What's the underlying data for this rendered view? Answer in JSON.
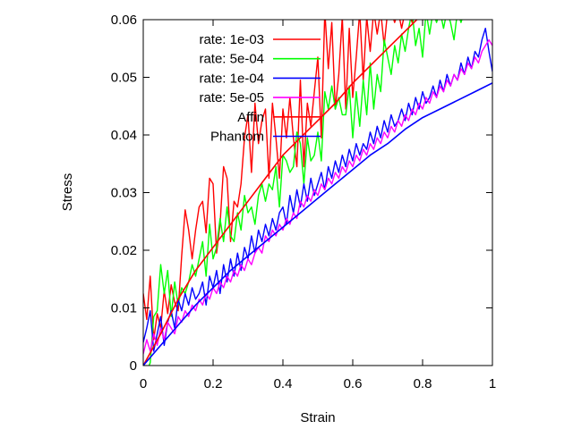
{
  "chart_data": {
    "type": "line",
    "xlabel": "Strain",
    "ylabel": "Stress",
    "xlim": [
      0,
      1
    ],
    "ylim": [
      0,
      0.06
    ],
    "xticks": [
      "0",
      "0.2",
      "0.4",
      "0.6",
      "0.8",
      "1"
    ],
    "xtick_values": [
      0,
      0.2,
      0.4,
      0.6,
      0.8,
      1
    ],
    "yticks": [
      "0",
      "0.01",
      "0.02",
      "0.03",
      "0.04",
      "0.05",
      "0.06"
    ],
    "ytick_values": [
      0,
      0.01,
      0.02,
      0.03,
      0.04,
      0.05,
      0.06
    ],
    "grid": false,
    "legend_position": "top-left",
    "series": [
      {
        "name": "rate: 1e-03",
        "color": "#ff0000",
        "style": "noisy",
        "x": [
          0.0,
          0.01,
          0.02,
          0.03,
          0.04,
          0.05,
          0.06,
          0.07,
          0.08,
          0.09,
          0.1,
          0.11,
          0.12,
          0.13,
          0.14,
          0.15,
          0.16,
          0.17,
          0.18,
          0.19,
          0.2,
          0.21,
          0.22,
          0.23,
          0.24,
          0.25,
          0.26,
          0.27,
          0.28,
          0.29,
          0.3,
          0.31,
          0.32,
          0.33,
          0.34,
          0.35,
          0.36,
          0.37,
          0.38,
          0.39,
          0.4,
          0.41,
          0.42,
          0.43,
          0.44,
          0.45,
          0.46,
          0.47,
          0.48,
          0.49,
          0.5,
          0.51,
          0.52,
          0.53,
          0.54,
          0.55,
          0.56,
          0.57,
          0.58,
          0.59,
          0.6,
          0.61,
          0.62,
          0.63,
          0.64,
          0.65,
          0.66,
          0.67,
          0.68,
          0.69,
          0.7,
          0.71,
          0.72,
          0.73,
          0.74,
          0.75,
          0.76,
          0.77,
          0.78,
          0.79,
          0.8,
          0.81,
          0.82,
          0.83,
          0.84,
          0.85,
          0.86,
          0.87,
          0.88,
          0.89,
          0.9,
          0.91,
          0.92,
          0.93
        ],
        "y": [
          0.0125,
          0.008,
          0.0155,
          0.0045,
          0.009,
          0.0065,
          0.013,
          0.009,
          0.014,
          0.011,
          0.0095,
          0.019,
          0.027,
          0.0235,
          0.0185,
          0.0235,
          0.0275,
          0.0285,
          0.023,
          0.0325,
          0.0315,
          0.0195,
          0.0245,
          0.0345,
          0.0325,
          0.0215,
          0.0285,
          0.0275,
          0.0315,
          0.0395,
          0.0435,
          0.0335,
          0.0455,
          0.0385,
          0.0425,
          0.0445,
          0.0325,
          0.0455,
          0.0395,
          0.0325,
          0.0445,
          0.0395,
          0.0465,
          0.0395,
          0.0345,
          0.0495,
          0.0345,
          0.0455,
          0.0415,
          0.0475,
          0.0535,
          0.0395,
          0.0615,
          0.0515,
          0.0595,
          0.0445,
          0.0505,
          0.0605,
          0.0445,
          0.0585,
          0.0465,
          0.0535,
          0.0615,
          0.0495,
          0.0605,
          0.0545,
          0.0615,
          0.0575,
          0.0615,
          0.0555,
          0.0615,
          0.0615,
          0.0595,
          0.0615,
          0.0585,
          0.0615,
          0.0615,
          0.0595,
          0.0615,
          0.0615,
          0.0615,
          0.0615,
          0.0615,
          0.0615,
          0.0615,
          0.0615,
          0.0615,
          0.0615,
          0.0615,
          0.0615,
          0.0615,
          0.0615,
          0.0615,
          0.0615
        ]
      },
      {
        "name": "rate: 5e-04",
        "color": "#00ff00",
        "style": "noisy",
        "x": [
          0.0,
          0.01,
          0.02,
          0.03,
          0.04,
          0.05,
          0.06,
          0.07,
          0.08,
          0.09,
          0.1,
          0.11,
          0.12,
          0.13,
          0.14,
          0.15,
          0.16,
          0.17,
          0.18,
          0.19,
          0.2,
          0.21,
          0.22,
          0.23,
          0.24,
          0.25,
          0.26,
          0.27,
          0.28,
          0.29,
          0.3,
          0.31,
          0.32,
          0.33,
          0.34,
          0.35,
          0.36,
          0.37,
          0.38,
          0.39,
          0.4,
          0.41,
          0.42,
          0.43,
          0.44,
          0.45,
          0.46,
          0.47,
          0.48,
          0.49,
          0.5,
          0.51,
          0.52,
          0.53,
          0.54,
          0.55,
          0.56,
          0.57,
          0.58,
          0.59,
          0.6,
          0.61,
          0.62,
          0.63,
          0.64,
          0.65,
          0.66,
          0.67,
          0.68,
          0.69,
          0.7,
          0.71,
          0.72,
          0.73,
          0.74,
          0.75,
          0.76,
          0.77,
          0.78,
          0.79,
          0.8,
          0.81,
          0.82,
          0.83,
          0.84,
          0.85,
          0.86,
          0.87,
          0.88,
          0.89,
          0.9,
          0.91,
          0.92,
          0.93
        ],
        "y": [
          0.0,
          -0.001,
          0.0005,
          0.0085,
          0.0095,
          0.0175,
          0.0125,
          0.0165,
          0.0085,
          0.0145,
          0.0105,
          0.0135,
          0.0125,
          0.0145,
          0.0175,
          0.0155,
          0.0185,
          0.0215,
          0.0155,
          0.0245,
          0.0185,
          0.0205,
          0.0255,
          0.0215,
          0.0275,
          0.0225,
          0.0215,
          0.0265,
          0.0235,
          0.0295,
          0.0265,
          0.0275,
          0.0245,
          0.0295,
          0.0315,
          0.0285,
          0.0315,
          0.0305,
          0.0345,
          0.0275,
          0.0365,
          0.0355,
          0.0335,
          0.0345,
          0.0405,
          0.0385,
          0.0315,
          0.0395,
          0.0355,
          0.0365,
          0.0405,
          0.0355,
          0.0475,
          0.0445,
          0.0485,
          0.0445,
          0.0465,
          0.0435,
          0.0435,
          0.0485,
          0.0395,
          0.0475,
          0.0415,
          0.0495,
          0.0435,
          0.0525,
          0.0445,
          0.0505,
          0.0475,
          0.0565,
          0.0535,
          0.0505,
          0.0555,
          0.0525,
          0.0575,
          0.0545,
          0.0585,
          0.0615,
          0.0555,
          0.0585,
          0.0535,
          0.0615,
          0.0575,
          0.0615,
          0.0595,
          0.0615,
          0.0585,
          0.0615,
          0.0595,
          0.0565,
          0.0615,
          0.0595,
          0.0615,
          0.0615
        ]
      },
      {
        "name": "rate: 1e-04",
        "color": "#0000ff",
        "style": "noisy",
        "x": [
          0.0,
          0.01,
          0.02,
          0.03,
          0.04,
          0.05,
          0.06,
          0.07,
          0.08,
          0.09,
          0.1,
          0.11,
          0.12,
          0.13,
          0.14,
          0.15,
          0.16,
          0.17,
          0.18,
          0.19,
          0.2,
          0.21,
          0.22,
          0.23,
          0.24,
          0.25,
          0.26,
          0.27,
          0.28,
          0.29,
          0.3,
          0.31,
          0.32,
          0.33,
          0.34,
          0.35,
          0.36,
          0.37,
          0.38,
          0.39,
          0.4,
          0.41,
          0.42,
          0.43,
          0.44,
          0.45,
          0.46,
          0.47,
          0.48,
          0.49,
          0.5,
          0.51,
          0.52,
          0.53,
          0.54,
          0.55,
          0.56,
          0.57,
          0.58,
          0.59,
          0.6,
          0.61,
          0.62,
          0.63,
          0.64,
          0.65,
          0.66,
          0.67,
          0.68,
          0.69,
          0.7,
          0.71,
          0.72,
          0.73,
          0.74,
          0.75,
          0.76,
          0.77,
          0.78,
          0.79,
          0.8,
          0.81,
          0.82,
          0.83,
          0.84,
          0.85,
          0.86,
          0.87,
          0.88,
          0.89,
          0.9,
          0.91,
          0.92,
          0.93,
          0.94,
          0.95,
          0.96,
          0.97,
          0.98,
          0.99,
          1.0
        ],
        "y": [
          0.004,
          0.0065,
          0.0095,
          0.0025,
          0.0055,
          0.0085,
          0.0035,
          0.0075,
          0.0095,
          0.0065,
          0.0115,
          0.0095,
          0.0125,
          0.0105,
          0.0135,
          0.0115,
          0.0125,
          0.0145,
          0.0105,
          0.0155,
          0.0135,
          0.0165,
          0.0125,
          0.0175,
          0.0145,
          0.0185,
          0.0155,
          0.0195,
          0.0165,
          0.0205,
          0.0185,
          0.0225,
          0.0195,
          0.0235,
          0.0215,
          0.0245,
          0.0225,
          0.0255,
          0.0235,
          0.0265,
          0.0275,
          0.0245,
          0.0295,
          0.0265,
          0.0305,
          0.0275,
          0.0315,
          0.0285,
          0.0325,
          0.0295,
          0.0315,
          0.0335,
          0.0305,
          0.0345,
          0.0325,
          0.0355,
          0.0335,
          0.0365,
          0.0345,
          0.0375,
          0.0355,
          0.0385,
          0.0365,
          0.0385,
          0.0375,
          0.0405,
          0.0385,
          0.0415,
          0.0395,
          0.0425,
          0.0405,
          0.0435,
          0.0415,
          0.0425,
          0.0445,
          0.0425,
          0.0455,
          0.0435,
          0.0465,
          0.0445,
          0.0475,
          0.0455,
          0.0465,
          0.0485,
          0.0465,
          0.0495,
          0.0475,
          0.0505,
          0.0485,
          0.0505,
          0.0495,
          0.0525,
          0.0505,
          0.0535,
          0.0515,
          0.0545,
          0.0535,
          0.0565,
          0.0585,
          0.0545,
          0.051
        ]
      },
      {
        "name": "rate: 5e-05",
        "color": "#ff00ff",
        "style": "noisy",
        "x": [
          0.0,
          0.01,
          0.02,
          0.03,
          0.04,
          0.05,
          0.06,
          0.07,
          0.08,
          0.09,
          0.1,
          0.11,
          0.12,
          0.13,
          0.14,
          0.15,
          0.16,
          0.17,
          0.18,
          0.19,
          0.2,
          0.21,
          0.22,
          0.23,
          0.24,
          0.25,
          0.26,
          0.27,
          0.28,
          0.29,
          0.3,
          0.31,
          0.32,
          0.33,
          0.34,
          0.35,
          0.36,
          0.37,
          0.38,
          0.39,
          0.4,
          0.41,
          0.42,
          0.43,
          0.44,
          0.45,
          0.46,
          0.47,
          0.48,
          0.49,
          0.5,
          0.51,
          0.52,
          0.53,
          0.54,
          0.55,
          0.56,
          0.57,
          0.58,
          0.59,
          0.6,
          0.61,
          0.62,
          0.63,
          0.64,
          0.65,
          0.66,
          0.67,
          0.68,
          0.69,
          0.7,
          0.71,
          0.72,
          0.73,
          0.74,
          0.75,
          0.76,
          0.77,
          0.78,
          0.79,
          0.8,
          0.81,
          0.82,
          0.83,
          0.84,
          0.85,
          0.86,
          0.87,
          0.88,
          0.89,
          0.9,
          0.91,
          0.92,
          0.93,
          0.94,
          0.95,
          0.96,
          0.97,
          0.98,
          0.99,
          1.0
        ],
        "y": [
          0.002,
          0.0045,
          0.0025,
          0.0055,
          0.0035,
          0.0065,
          0.0045,
          0.0075,
          0.0065,
          0.0055,
          0.0085,
          0.0075,
          0.0095,
          0.0085,
          0.0105,
          0.0095,
          0.0115,
          0.0105,
          0.0125,
          0.0115,
          0.0135,
          0.0125,
          0.0145,
          0.0135,
          0.0155,
          0.0145,
          0.0165,
          0.0155,
          0.0175,
          0.0165,
          0.0185,
          0.0175,
          0.0195,
          0.0205,
          0.0195,
          0.0225,
          0.0215,
          0.0235,
          0.0225,
          0.0245,
          0.0235,
          0.0255,
          0.0245,
          0.0265,
          0.0255,
          0.0285,
          0.0275,
          0.0295,
          0.0285,
          0.0305,
          0.0295,
          0.0315,
          0.0305,
          0.0325,
          0.0315,
          0.0335,
          0.0325,
          0.0345,
          0.0335,
          0.0355,
          0.0345,
          0.0365,
          0.0355,
          0.0375,
          0.0365,
          0.0385,
          0.0375,
          0.0395,
          0.0385,
          0.0405,
          0.0395,
          0.0415,
          0.0405,
          0.0425,
          0.0415,
          0.0435,
          0.0425,
          0.0445,
          0.0435,
          0.0455,
          0.0445,
          0.0465,
          0.0455,
          0.0475,
          0.0465,
          0.0485,
          0.0475,
          0.0495,
          0.0485,
          0.0505,
          0.0495,
          0.0515,
          0.0505,
          0.0525,
          0.0515,
          0.0535,
          0.0525,
          0.0545,
          0.0555,
          0.0565,
          0.0555
        ]
      },
      {
        "name": "Affin",
        "color": "#ff0000",
        "style": "smooth",
        "x": [
          0.0,
          0.05,
          0.1,
          0.15,
          0.2,
          0.25,
          0.3,
          0.35,
          0.4,
          0.45,
          0.5,
          0.55,
          0.6,
          0.65,
          0.7,
          0.75,
          0.8
        ],
        "y": [
          0.0,
          0.0055,
          0.0115,
          0.0165,
          0.0205,
          0.0245,
          0.0285,
          0.0325,
          0.0365,
          0.0395,
          0.0425,
          0.0455,
          0.049,
          0.052,
          0.055,
          0.058,
          0.061
        ]
      },
      {
        "name": "Phantom",
        "color": "#0000ff",
        "style": "smooth",
        "x": [
          0.0,
          0.05,
          0.1,
          0.15,
          0.2,
          0.25,
          0.3,
          0.35,
          0.4,
          0.45,
          0.5,
          0.55,
          0.6,
          0.65,
          0.7,
          0.75,
          0.8,
          0.85,
          0.9,
          0.95,
          1.0
        ],
        "y": [
          0.0,
          0.0035,
          0.007,
          0.0105,
          0.0135,
          0.0165,
          0.019,
          0.0215,
          0.024,
          0.0265,
          0.029,
          0.0315,
          0.034,
          0.0365,
          0.0385,
          0.041,
          0.043,
          0.0445,
          0.046,
          0.0475,
          0.049
        ]
      }
    ]
  }
}
